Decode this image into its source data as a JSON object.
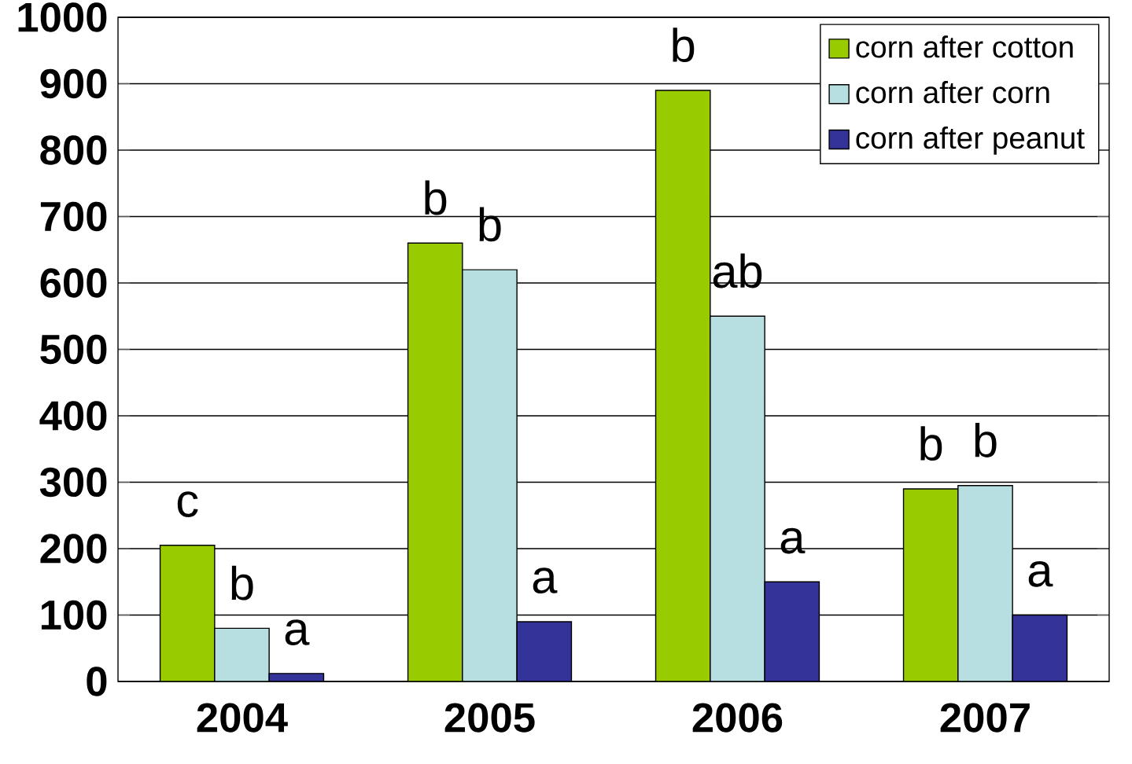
{
  "chart_data": {
    "type": "bar",
    "categories": [
      "2004",
      "2005",
      "2006",
      "2007"
    ],
    "series": [
      {
        "name": "corn after cotton",
        "color": "#99cc00",
        "values": [
          205,
          660,
          890,
          290
        ]
      },
      {
        "name": "corn after corn",
        "color": "#b7dfe2",
        "values": [
          80,
          620,
          550,
          295
        ]
      },
      {
        "name": "corn after peanut",
        "color": "#333399",
        "values": [
          12,
          90,
          150,
          100
        ]
      }
    ],
    "ylim": [
      0,
      1000
    ],
    "yticks": [
      0,
      100,
      200,
      300,
      400,
      500,
      600,
      700,
      800,
      900,
      1000
    ],
    "grid": "y",
    "legend": "top right",
    "annotations": [
      "c",
      "b",
      "a",
      "b",
      "b",
      "a",
      "b",
      "ab",
      "a",
      "b",
      "b",
      "a"
    ]
  }
}
